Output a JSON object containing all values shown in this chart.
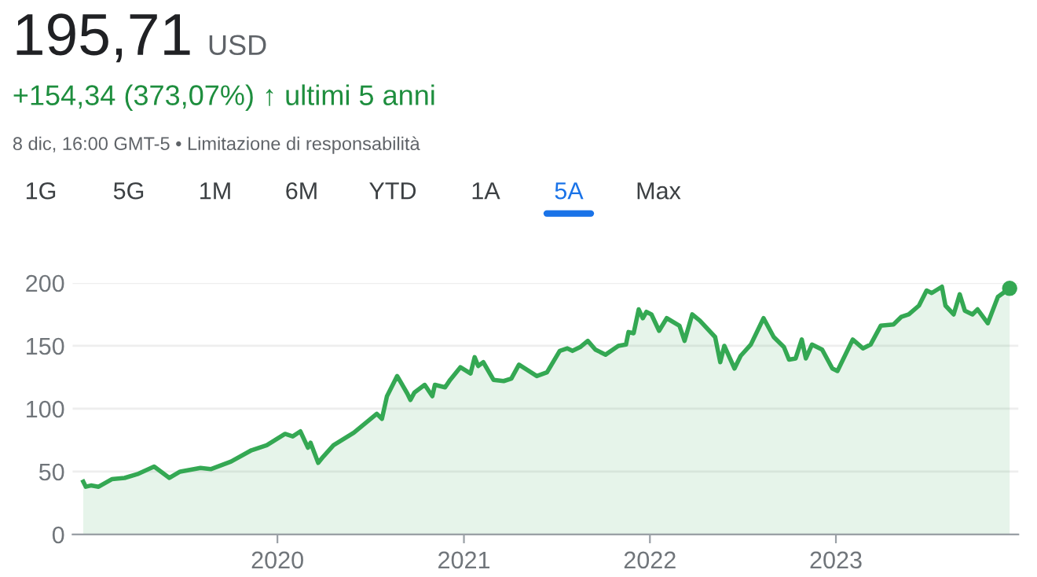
{
  "chart_data": {
    "type": "area",
    "title": "195,71",
    "annotations": [
      "USD",
      "+154,34 (373,07%) ↑ ultimi 5 anni",
      "8 dic, 16:00 GMT-5 • Limitazione di responsabilità",
      "1G",
      "5G",
      "1M",
      "6M",
      "YTD",
      "1A",
      "5A",
      "Max"
    ],
    "series": [
      {
        "color": "#34a853",
        "x": [
          "2018-12-16",
          "2018-12-21",
          "2018-12-31",
          "2019-01-15",
          "2019-02-10",
          "2019-03-07",
          "2019-04-01",
          "2019-05-04",
          "2019-06-03",
          "2019-06-24",
          "2019-08-03",
          "2019-08-23",
          "2019-10-02",
          "2019-11-11",
          "2019-12-11",
          "2020-01-16",
          "2020-01-31",
          "2020-02-15",
          "2020-03-01",
          "2020-03-06",
          "2020-03-21",
          "2020-03-31",
          "2020-04-20",
          "2020-05-30",
          "2020-07-14",
          "2020-07-24",
          "2020-08-03",
          "2020-08-23",
          "2020-09-12",
          "2020-09-18",
          "2020-09-26",
          "2020-10-16",
          "2020-10-31",
          "2020-11-05",
          "2020-11-25",
          "2020-12-05",
          "2020-12-25",
          "2021-01-14",
          "2021-01-22",
          "2021-01-29",
          "2021-02-08",
          "2021-02-28",
          "2021-03-20",
          "2021-04-04",
          "2021-04-19",
          "2021-05-24",
          "2021-06-13",
          "2021-07-08",
          "2021-07-23",
          "2021-08-02",
          "2021-08-17",
          "2021-09-01",
          "2021-09-16",
          "2021-10-06",
          "2021-10-31",
          "2021-11-15",
          "2021-11-20",
          "2021-11-30",
          "2021-12-10",
          "2021-12-18",
          "2021-12-25",
          "2022-01-04",
          "2022-01-19",
          "2022-02-03",
          "2022-02-28",
          "2022-03-10",
          "2022-03-25",
          "2022-04-09",
          "2022-05-09",
          "2022-05-19",
          "2022-05-27",
          "2022-06-16",
          "2022-06-28",
          "2022-07-18",
          "2022-08-12",
          "2022-09-01",
          "2022-09-21",
          "2022-10-01",
          "2022-10-14",
          "2022-10-26",
          "2022-11-03",
          "2022-11-15",
          "2022-12-05",
          "2022-12-25",
          "2023-01-04",
          "2023-02-03",
          "2023-02-23",
          "2023-03-10",
          "2023-03-30",
          "2023-04-24",
          "2023-05-09",
          "2023-05-24",
          "2023-06-13",
          "2023-06-28",
          "2023-07-08",
          "2023-07-28",
          "2023-08-04",
          "2023-08-20",
          "2023-09-01",
          "2023-09-11",
          "2023-09-26",
          "2023-10-06",
          "2023-10-26",
          "2023-11-15",
          "2023-12-08"
        ],
        "values": [
          42,
          38,
          39,
          38,
          44,
          45,
          48,
          54,
          45,
          50,
          53,
          52,
          58,
          67,
          71,
          80,
          78,
          82,
          69,
          73,
          57,
          62,
          71,
          81,
          96,
          92,
          110,
          126,
          112,
          107,
          113,
          119,
          110,
          119,
          117,
          123,
          133,
          128,
          141,
          134,
          137,
          123,
          122,
          124,
          135,
          126,
          129,
          146,
          148,
          146,
          149,
          154,
          147,
          143,
          150,
          151,
          161,
          160,
          179,
          172,
          177,
          175,
          162,
          172,
          166,
          154,
          175,
          170,
          157,
          137,
          150,
          132,
          142,
          151,
          172,
          157,
          149,
          139,
          140,
          155,
          140,
          151,
          147,
          132,
          130,
          155,
          148,
          151,
          166,
          167,
          173,
          175,
          182,
          194,
          192,
          197,
          182,
          175,
          191,
          178,
          175,
          179,
          168,
          189,
          195.71
        ]
      }
    ],
    "xlim": [
      "2018-11-25",
      "2023-12-25"
    ],
    "xticks": [
      {
        "value": "2020-01-01",
        "label": "2020"
      },
      {
        "value": "2021-01-01",
        "label": "2021"
      },
      {
        "value": "2022-01-01",
        "label": "2022"
      },
      {
        "value": "2023-01-01",
        "label": "2023"
      }
    ],
    "ylim": [
      0,
      200
    ],
    "yticks": [
      0,
      50,
      100,
      150,
      200
    ],
    "grid": "y",
    "legend": false
  }
}
